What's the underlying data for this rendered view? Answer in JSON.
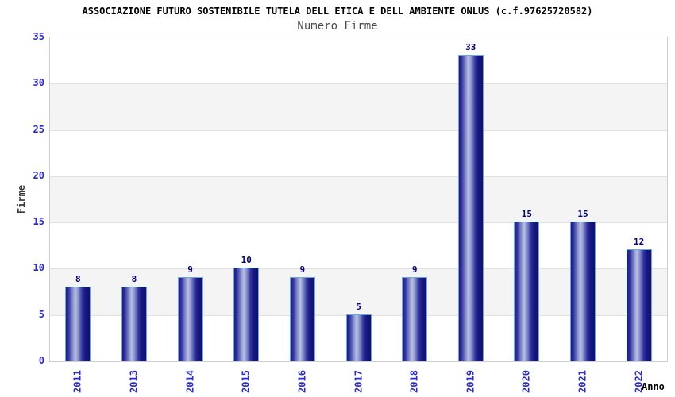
{
  "header": {
    "title": "ASSOCIAZIONE FUTURO SOSTENIBILE TUTELA DELL ETICA E DELL AMBIENTE ONLUS (c.f.97625720582)",
    "subtitle": "Numero Firme"
  },
  "chart_data": {
    "type": "bar",
    "title": "ASSOCIAZIONE FUTURO SOSTENIBILE TUTELA DELL ETICA E DELL AMBIENTE ONLUS (c.f.97625720582)",
    "subtitle": "Numero Firme",
    "xlabel": "Anno",
    "ylabel": "Firme",
    "categories": [
      "2011",
      "2013",
      "2014",
      "2015",
      "2016",
      "2017",
      "2018",
      "2019",
      "2020",
      "2021",
      "2022"
    ],
    "values": [
      8,
      8,
      9,
      10,
      9,
      5,
      9,
      33,
      15,
      15,
      12
    ],
    "ylim": [
      0,
      35
    ],
    "yticks": [
      0,
      5,
      10,
      15,
      20,
      25,
      30,
      35
    ],
    "grid": "alternating horizontal bands with light gridlines",
    "legend_position": "none",
    "colors": {
      "bar_dark": "#16167f",
      "bar_light": "#bac1e5",
      "bar_border": "#69a8e0",
      "tick_label": "#2b2bd5",
      "value_label": "#00007f",
      "band_gray": "#f4f4f4",
      "gridline": "#e1e1e1",
      "plot_border": "#cfcfcf",
      "title": "#000000",
      "subtitle": "#4a4a4a",
      "axis_label": "#3a3a3a"
    }
  }
}
